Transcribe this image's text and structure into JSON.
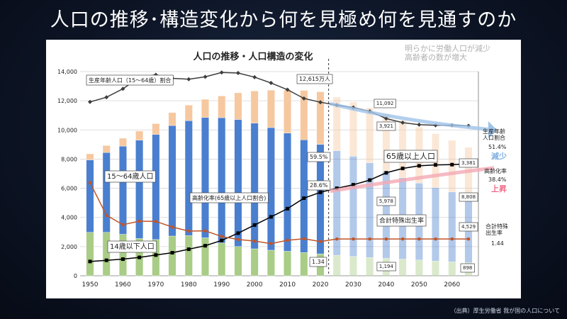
{
  "slide": {
    "title": "人口の推移･構造変化から何を見極め何を見通すのか",
    "source_note": "（出典）厚生労働省 我が国の人口について"
  },
  "chart_data": {
    "type": "bar",
    "title": "人口の推移・人口構造の変化",
    "subtitle": "明らかに労働人口が減少\n高齢者の数が増大",
    "units": "万人",
    "x": [
      1950,
      1955,
      1960,
      1965,
      1970,
      1975,
      1980,
      1985,
      1990,
      1995,
      2000,
      2005,
      2010,
      2015,
      2020,
      2025,
      2030,
      2035,
      2040,
      2045,
      2050,
      2055,
      2060,
      2065
    ],
    "x_ticks": [
      "1950",
      "1960",
      "1970",
      "1980",
      "1990",
      "2000",
      "2010",
      "2020",
      "2030",
      "2040",
      "2050",
      "2060"
    ],
    "ylim": [
      0,
      14000
    ],
    "y_ticks": [
      "0",
      "2,000",
      "4,000",
      "6,000",
      "8,000",
      "10,000",
      "12,000",
      "14,000"
    ],
    "projection_start": 2025,
    "series": [
      {
        "name": "14歳以下人口",
        "color": "#a9cc86",
        "values": [
          2979,
          2980,
          2843,
          2553,
          2482,
          2722,
          2751,
          2603,
          2249,
          2001,
          1847,
          1752,
          1680,
          1595,
          1503,
          1407,
          1321,
          1246,
          1194,
          1138,
          1077,
          1012,
          951,
          898
        ]
      },
      {
        "name": "15〜64歳人口",
        "color": "#4a7fcf",
        "values": [
          4966,
          5473,
          6047,
          6744,
          7212,
          7581,
          7884,
          8251,
          8590,
          8716,
          8622,
          8409,
          8103,
          7728,
          7509,
          7170,
          6875,
          6494,
          5978,
          5584,
          5275,
          5028,
          4793,
          4529
        ]
      },
      {
        "name": "65歳以上人口",
        "color": "#f6c8a0",
        "values": [
          416,
          479,
          540,
          624,
          739,
          887,
          1065,
          1247,
          1489,
          1828,
          2204,
          2567,
          2948,
          3387,
          3603,
          3677,
          3716,
          3782,
          3921,
          3919,
          3841,
          3704,
          3540,
          3381
        ]
      }
    ],
    "line_series": [
      {
        "name": "生産年齢人口（15〜64歳）割合",
        "color": "#3d3d3d",
        "secondary_scale": "%",
        "point_style": "diamond",
        "values": [
          59.6,
          61.2,
          64.1,
          68.0,
          68.9,
          67.7,
          67.4,
          68.2,
          69.7,
          69.5,
          68.1,
          66.1,
          63.8,
          60.8,
          59.5,
          58.5,
          57.7,
          56.4,
          53.9,
          52.5,
          51.8,
          51.6,
          51.6,
          51.4
        ]
      },
      {
        "name": "高齢化率（65歳以上人口割合）",
        "color": "#000000",
        "secondary_scale": "%",
        "point_style": "square",
        "values": [
          4.9,
          5.3,
          5.7,
          6.3,
          7.1,
          7.9,
          9.1,
          10.3,
          12.1,
          14.6,
          17.4,
          20.2,
          23.0,
          26.6,
          28.6,
          30.0,
          31.2,
          32.8,
          35.3,
          36.8,
          37.7,
          38.0,
          38.1,
          38.4
        ]
      },
      {
        "name": "合計特殊出生率",
        "color": "#c0562a",
        "secondary_scale": "rate",
        "point_style": "circle",
        "values": [
          3.65,
          2.37,
          2.0,
          2.14,
          2.13,
          1.91,
          1.75,
          1.76,
          1.54,
          1.42,
          1.36,
          1.26,
          1.39,
          1.45,
          1.34,
          1.44,
          1.44,
          1.44,
          1.44,
          1.44,
          1.44,
          1.44,
          1.44,
          1.44
        ]
      }
    ],
    "annotations": {
      "total_2020": "12,615万人",
      "total_2040": "11,092",
      "total_2065": "8,808",
      "elderly_2040": "3,921",
      "elderly_2065": "3,381",
      "working_2040": "5,978",
      "working_2065": "4,529",
      "child_2040": "1,194",
      "child_2065": "898",
      "working_ratio_2020": "59.5%",
      "aging_2020": "28.6%",
      "tfr_2020": "1.34",
      "label_working_ratio": "生産年齢人口（15〜64歳）割合",
      "label_working": "15〜64歳人口",
      "label_aging": "高齢化率(65歳以上人口割合)",
      "label_child": "14歳以下人口",
      "label_elderly": "65歳以上人口",
      "label_tfr": "合計特殊出生率",
      "right_working_title": "生産年齢\n人口割合",
      "right_working_value": "51.4%",
      "right_decrease": "減少",
      "right_aging_title": "高齢化率",
      "right_aging_value": "38.4%",
      "right_increase": "上昇",
      "right_tfr_title": "合計特殊\n出生率",
      "right_tfr_value": "1.44"
    }
  }
}
